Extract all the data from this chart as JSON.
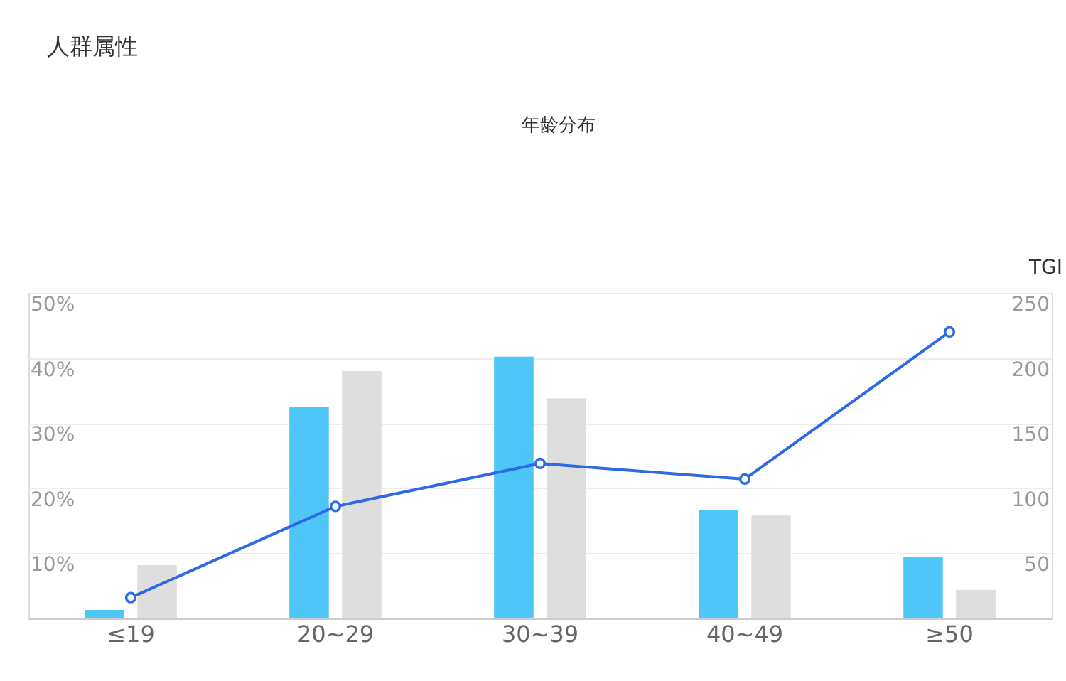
{
  "chart_data": {
    "type": "bar",
    "title": "人群属性",
    "subtitle": "年龄分布",
    "y2label": "TGI",
    "categories": [
      "≤19",
      "20~29",
      "30~39",
      "40~49",
      "≥50"
    ],
    "series": [
      {
        "color": "#4fc6f8",
        "values": [
          1.3,
          32.5,
          40.2,
          16.7,
          9.5
        ]
      },
      {
        "color": "#dedede",
        "values": [
          8.2,
          38.0,
          33.8,
          15.8,
          4.4
        ]
      },
      {
        "type": "line",
        "axis": "y2",
        "color": "#2f6ae6",
        "values": [
          16,
          86,
          119,
          107,
          220
        ]
      }
    ],
    "ylim": [
      0,
      50
    ],
    "yticks": [
      {
        "value": 0,
        "label": null
      },
      {
        "value": 10,
        "label": "10%"
      },
      {
        "value": 20,
        "label": "20%"
      },
      {
        "value": 30,
        "label": "30%"
      },
      {
        "value": 40,
        "label": "40%"
      },
      {
        "value": 50,
        "label": "50%"
      }
    ],
    "y2lim": [
      0,
      250
    ],
    "y2ticks": [
      50,
      100,
      150,
      200,
      250
    ],
    "grid": "y",
    "legend": false,
    "marker": "circle"
  }
}
